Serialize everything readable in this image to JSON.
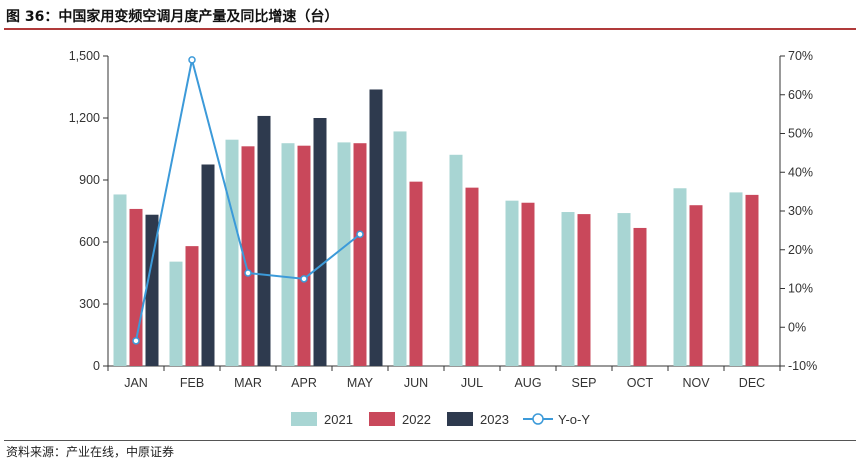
{
  "figure": {
    "title": "图 36：中国家用变频空调月度产量及同比增速（台）",
    "source": "资料来源：产业在线，中原证券"
  },
  "chart_data": {
    "type": "bar",
    "title": "图 36：中国家用变频空调月度产量及同比增速（台）",
    "categories": [
      "JAN",
      "FEB",
      "MAR",
      "APR",
      "MAY",
      "JUN",
      "JUL",
      "AUG",
      "SEP",
      "OCT",
      "NOV",
      "DEC"
    ],
    "series": [
      {
        "name": "2021",
        "type": "bar",
        "axis": "left",
        "color": "#a8d5d3",
        "values": [
          830,
          505,
          1095,
          1078,
          1082,
          1135,
          1022,
          800,
          745,
          740,
          860,
          840
        ]
      },
      {
        "name": "2022",
        "type": "bar",
        "axis": "left",
        "color": "#c9485b",
        "values": [
          760,
          580,
          1063,
          1066,
          1078,
          892,
          863,
          790,
          735,
          668,
          778,
          828
        ]
      },
      {
        "name": "2023",
        "type": "bar",
        "axis": "left",
        "color": "#2e3a4e",
        "values": [
          732,
          975,
          1210,
          1200,
          1338,
          null,
          null,
          null,
          null,
          null,
          null,
          null
        ]
      },
      {
        "name": "Y-o-Y",
        "type": "line",
        "axis": "right",
        "color": "#3c9ad9",
        "values": [
          -3.5,
          69,
          14,
          12.5,
          24,
          null,
          null,
          null,
          null,
          null,
          null,
          null
        ]
      }
    ],
    "yaxis_left": {
      "min": 0,
      "max": 1500,
      "ticks": [
        0,
        300,
        600,
        900,
        "1,200",
        "1,500"
      ],
      "tick_values": [
        0,
        300,
        600,
        900,
        1200,
        1500
      ]
    },
    "yaxis_right": {
      "min": -10,
      "max": 70,
      "ticks": [
        "-10%",
        "0%",
        "10%",
        "20%",
        "30%",
        "40%",
        "50%",
        "60%",
        "70%"
      ],
      "tick_values": [
        -10,
        0,
        10,
        20,
        30,
        40,
        50,
        60,
        70
      ]
    },
    "legend": {
      "placement": "bottom-center",
      "entries": [
        "2021",
        "2022",
        "2023",
        "Y-o-Y"
      ]
    },
    "grid": false
  }
}
